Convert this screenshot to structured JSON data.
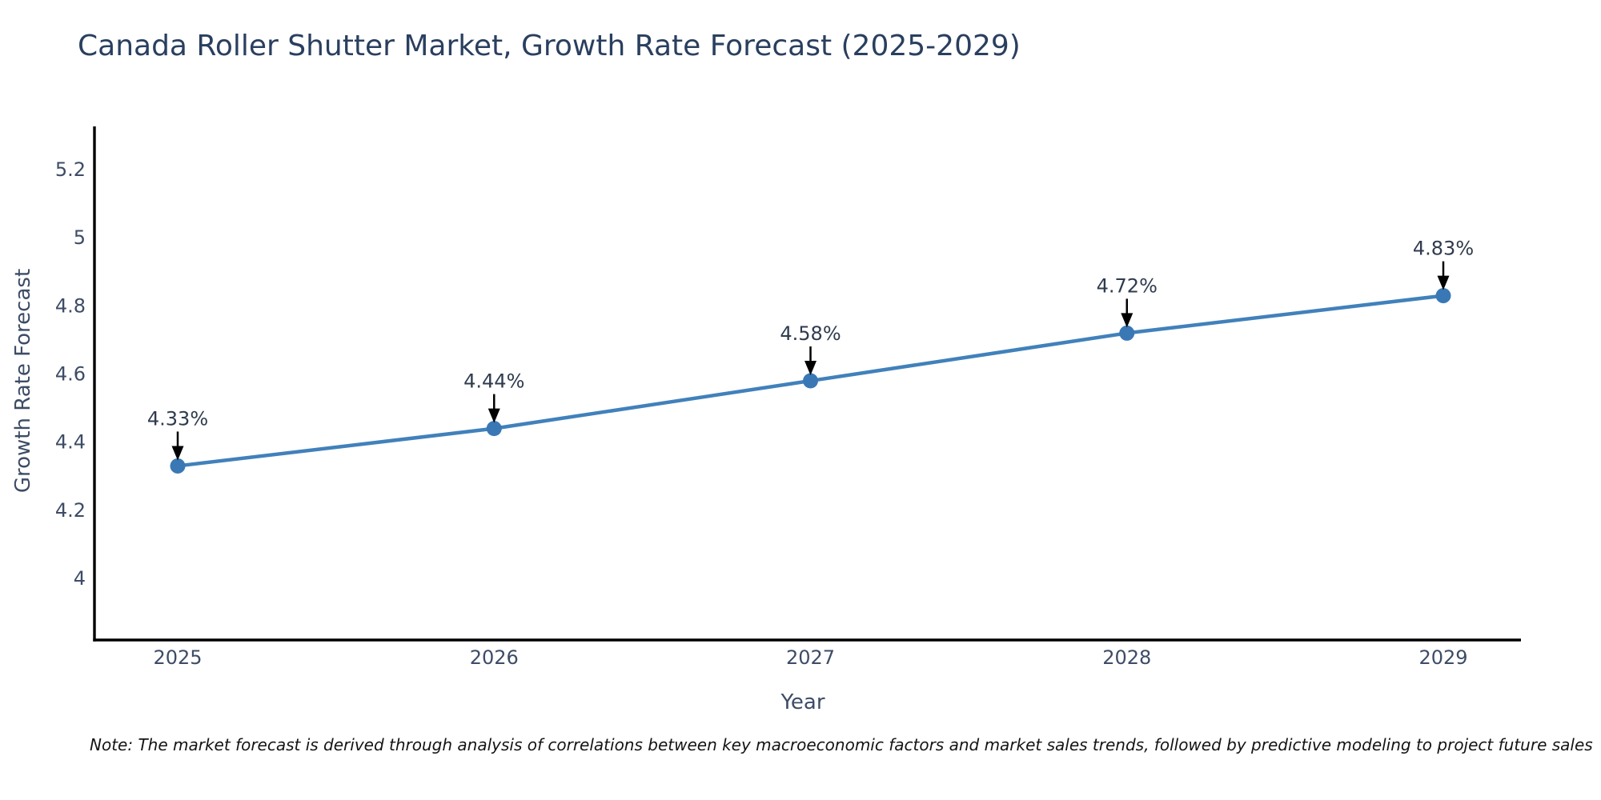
{
  "chart_data": {
    "type": "line",
    "title": "Canada Roller Shutter Market, Growth Rate Forecast (2025-2029)",
    "xlabel": "Year",
    "ylabel": "Growth Rate Forecast",
    "categories": [
      "2025",
      "2026",
      "2027",
      "2028",
      "2029"
    ],
    "values": [
      4.33,
      4.44,
      4.58,
      4.72,
      4.83
    ],
    "point_labels": [
      "4.33%",
      "4.44%",
      "4.58%",
      "4.72%",
      "4.83%"
    ],
    "yticks": [
      "4",
      "4.2",
      "4.4",
      "4.6",
      "4.8",
      "5",
      "5.2"
    ],
    "ytick_values": [
      4,
      4.2,
      4.4,
      4.6,
      4.8,
      5,
      5.2
    ],
    "ylim": [
      3.819,
      5.327
    ],
    "grid": false,
    "legend": false,
    "colors": {
      "line": "#4181bb",
      "marker": "#3a78b5",
      "axis": "#000000",
      "title_text": "#2a3f5f",
      "tick_text": "#3d4c66",
      "annotation_text": "#2f3b4e",
      "arrow": "#000000"
    }
  },
  "note": "Note: The market forecast is derived through analysis of correlations between key macroeconomic factors and market sales trends, followed by predictive modeling to project future sales"
}
